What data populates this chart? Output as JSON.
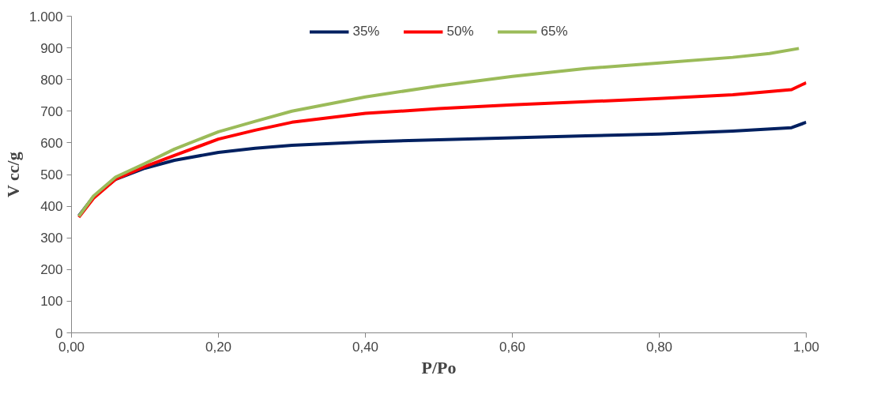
{
  "chart_data": {
    "type": "line",
    "xlabel": "P/Po",
    "ylabel": "V cc/g",
    "xlim": [
      0,
      1
    ],
    "xticks": [
      {
        "value": 0,
        "label": "0,00"
      },
      {
        "value": 0.2,
        "label": "0,20"
      },
      {
        "value": 0.4,
        "label": "0,40"
      },
      {
        "value": 0.6,
        "label": "0,60"
      },
      {
        "value": 0.8,
        "label": "0,80"
      },
      {
        "value": 1,
        "label": "1,00"
      }
    ],
    "ylim": [
      0,
      1000
    ],
    "yticks": [
      0,
      100,
      200,
      300,
      400,
      500,
      600,
      700,
      800,
      900,
      {
        "value": 1000,
        "label": "1.000"
      }
    ],
    "grid": false,
    "legend": "top",
    "line_style": "solid",
    "marker": "none",
    "series": [
      {
        "name": "35%",
        "color": "#002060",
        "x": [
          0.01,
          0.03,
          0.06,
          0.1,
          0.14,
          0.2,
          0.25,
          0.3,
          0.4,
          0.5,
          0.6,
          0.7,
          0.8,
          0.9,
          0.98,
          1.0
        ],
        "values": [
          370,
          430,
          485,
          520,
          545,
          570,
          583,
          592,
          603,
          610,
          616,
          622,
          628,
          637,
          648,
          665
        ]
      },
      {
        "name": "50%",
        "color": "#ff0000",
        "x": [
          0.01,
          0.03,
          0.06,
          0.1,
          0.14,
          0.2,
          0.25,
          0.3,
          0.4,
          0.5,
          0.6,
          0.7,
          0.8,
          0.9,
          0.98,
          1.0
        ],
        "values": [
          365,
          425,
          485,
          525,
          560,
          612,
          640,
          665,
          693,
          708,
          720,
          730,
          740,
          752,
          768,
          790
        ]
      },
      {
        "name": "65%",
        "color": "#9bbb59",
        "x": [
          0.01,
          0.03,
          0.06,
          0.1,
          0.14,
          0.2,
          0.25,
          0.3,
          0.4,
          0.5,
          0.6,
          0.7,
          0.8,
          0.9,
          0.95,
          0.99
        ],
        "values": [
          368,
          432,
          492,
          535,
          580,
          635,
          668,
          700,
          745,
          780,
          810,
          835,
          852,
          870,
          882,
          898
        ]
      }
    ]
  }
}
